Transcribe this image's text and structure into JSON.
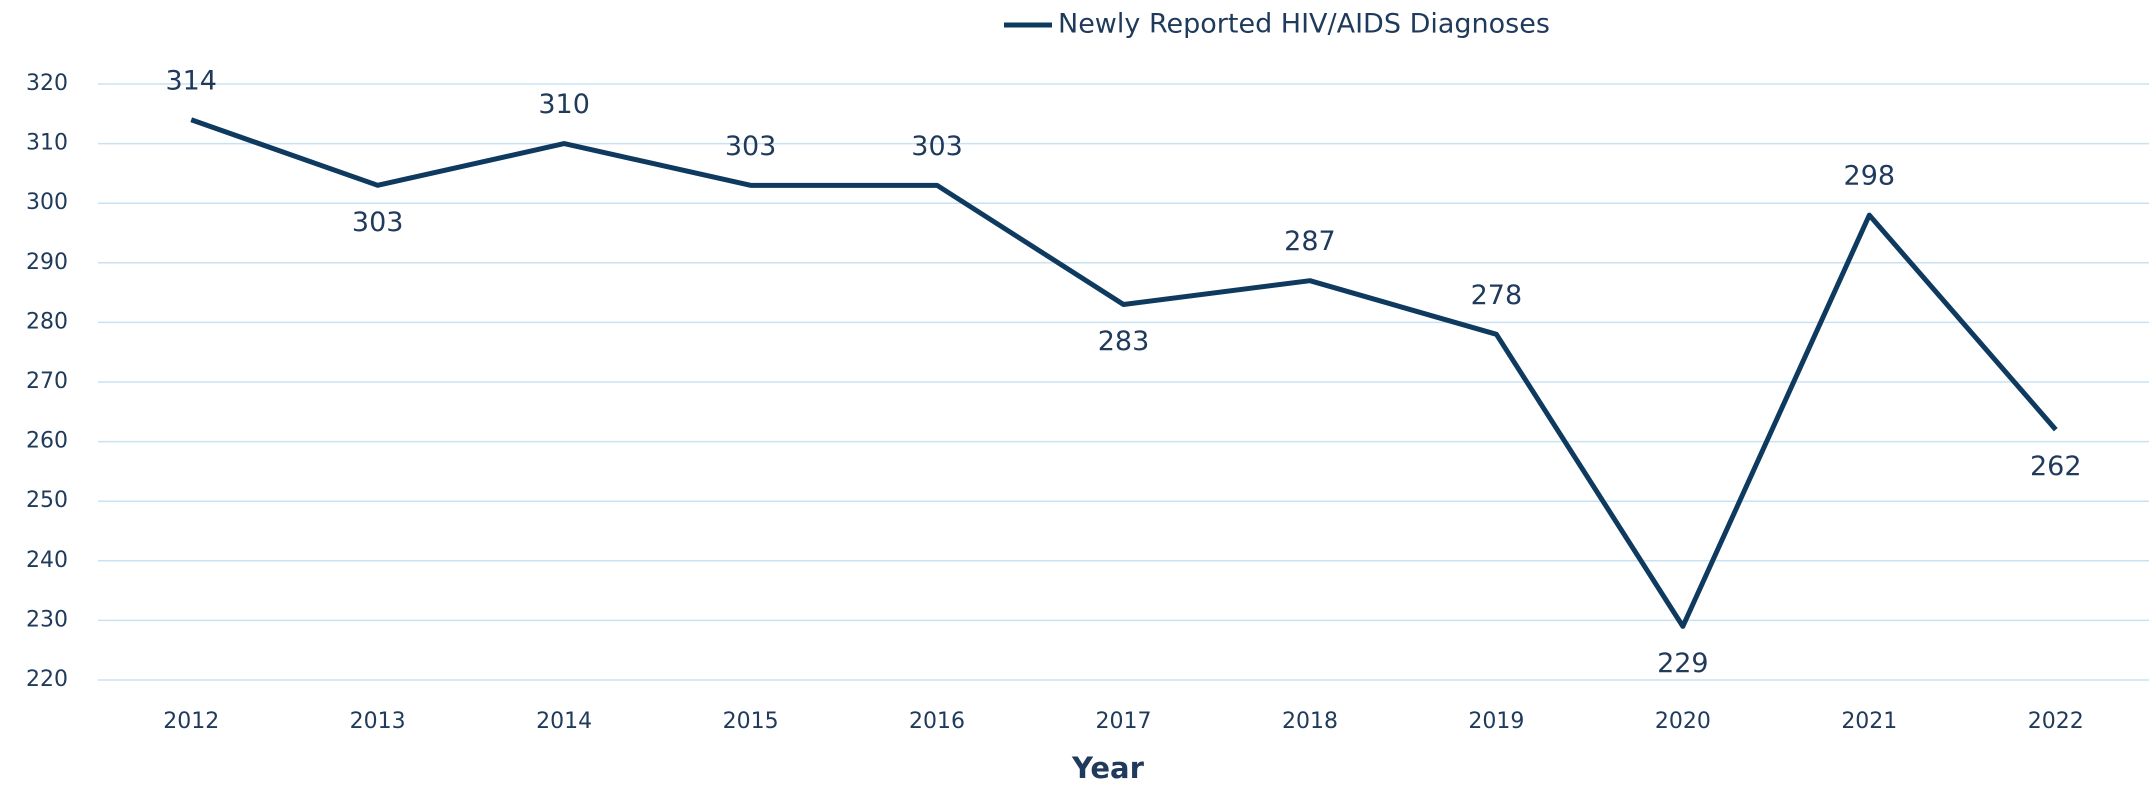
{
  "chart_data": {
    "type": "line",
    "categories": [
      "2012",
      "2013",
      "2014",
      "2015",
      "2016",
      "2017",
      "2018",
      "2019",
      "2020",
      "2021",
      "2022"
    ],
    "series": [
      {
        "name": "Newly Reported HIV/AIDS Diagnoses",
        "color": "#0f3a5f",
        "values": [
          314,
          303,
          310,
          303,
          303,
          283,
          287,
          278,
          229,
          298,
          262
        ]
      }
    ],
    "x_label": "Year",
    "ylim": [
      220,
      320
    ],
    "yticks": [
      220,
      230,
      240,
      250,
      260,
      270,
      280,
      290,
      300,
      310,
      320
    ],
    "grid": true,
    "legend": "top"
  }
}
